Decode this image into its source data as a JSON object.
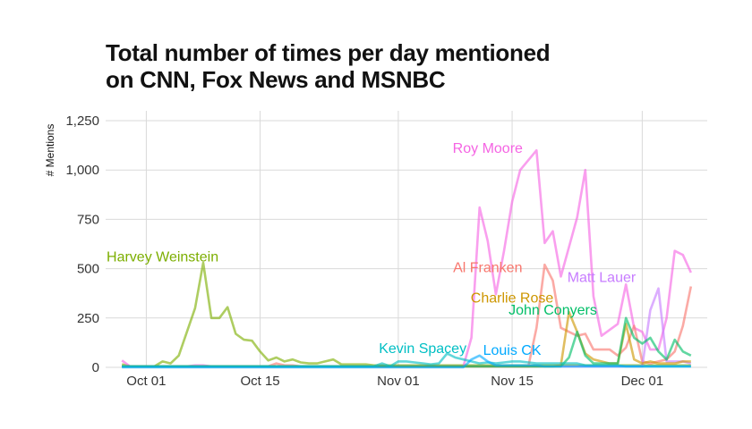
{
  "chart_data": {
    "type": "line",
    "title_lines": [
      "Total number of times per day mentioned",
      "on CNN, Fox News and MSNBC"
    ],
    "xlabel": "",
    "ylabel": "# Mentions",
    "x_start": "2017-09-28",
    "x_end": "2017-12-07",
    "xlim": [
      "2017-09-26",
      "2017-12-09"
    ],
    "ylim": [
      0,
      1300
    ],
    "y_ticks": [
      0,
      250,
      500,
      750,
      1000,
      1250
    ],
    "y_tick_labels": [
      "0",
      "250",
      "500",
      "750",
      "1,000",
      "1,250"
    ],
    "x_ticks": [
      "2017-10-01",
      "2017-10-15",
      "2017-11-01",
      "2017-11-15",
      "2017-12-01"
    ],
    "x_tick_labels": [
      "Oct 01",
      "Oct 15",
      "Nov 01",
      "Nov 15",
      "Dec 01"
    ],
    "grid": true,
    "legend": "direct labels",
    "series": [
      {
        "name": "Harvey Weinstein",
        "color": "#7cae00",
        "values": [
          15,
          5,
          5,
          5,
          5,
          30,
          20,
          60,
          180,
          300,
          530,
          250,
          250,
          305,
          170,
          140,
          135,
          80,
          35,
          50,
          30,
          40,
          25,
          20,
          20,
          30,
          40,
          15,
          15,
          15,
          15,
          10,
          10,
          10,
          10,
          10,
          10,
          10,
          10,
          10,
          10,
          10,
          10,
          10,
          10,
          10,
          10,
          10,
          10,
          10,
          10,
          10,
          10,
          10,
          10,
          10,
          10,
          10,
          10,
          10,
          10,
          10,
          10,
          10,
          10,
          10,
          10,
          10,
          10,
          10,
          10
        ]
      },
      {
        "name": "Roy Moore",
        "color": "#f564e3",
        "values": [
          35,
          5,
          5,
          5,
          5,
          5,
          5,
          5,
          5,
          10,
          10,
          5,
          5,
          5,
          5,
          5,
          5,
          5,
          5,
          5,
          5,
          5,
          5,
          5,
          5,
          5,
          5,
          5,
          5,
          5,
          5,
          5,
          5,
          5,
          5,
          5,
          5,
          5,
          5,
          5,
          5,
          5,
          5,
          150,
          810,
          640,
          370,
          590,
          840,
          1000,
          1050,
          1100,
          630,
          690,
          460,
          610,
          760,
          1000,
          360,
          160,
          190,
          220,
          420,
          200,
          180,
          90,
          90,
          250,
          590,
          570,
          480
        ]
      },
      {
        "name": "Al Franken",
        "color": "#f8766d",
        "values": [
          5,
          5,
          5,
          5,
          5,
          5,
          5,
          5,
          5,
          5,
          5,
          5,
          5,
          5,
          5,
          5,
          5,
          5,
          5,
          20,
          10,
          10,
          5,
          5,
          5,
          5,
          5,
          5,
          5,
          5,
          5,
          5,
          5,
          5,
          5,
          5,
          5,
          5,
          5,
          5,
          5,
          5,
          5,
          5,
          5,
          5,
          5,
          5,
          5,
          5,
          5,
          200,
          520,
          440,
          200,
          180,
          160,
          170,
          90,
          90,
          90,
          60,
          100,
          210,
          30,
          20,
          30,
          40,
          80,
          210,
          410
        ]
      },
      {
        "name": "Matt Lauer",
        "color": "#c77cff",
        "values": [
          5,
          5,
          5,
          5,
          5,
          5,
          5,
          5,
          5,
          5,
          5,
          5,
          5,
          5,
          5,
          5,
          5,
          5,
          5,
          5,
          5,
          5,
          5,
          5,
          5,
          5,
          5,
          5,
          5,
          5,
          5,
          5,
          5,
          5,
          5,
          5,
          5,
          5,
          5,
          5,
          5,
          5,
          5,
          5,
          5,
          5,
          5,
          5,
          5,
          5,
          5,
          5,
          5,
          5,
          5,
          5,
          5,
          5,
          5,
          5,
          5,
          5,
          5,
          5,
          5,
          290,
          400,
          30,
          30,
          30,
          20
        ]
      },
      {
        "name": "Charlie Rose",
        "color": "#cd9600",
        "values": [
          5,
          5,
          5,
          5,
          5,
          5,
          5,
          5,
          5,
          5,
          5,
          5,
          5,
          5,
          5,
          5,
          5,
          5,
          5,
          5,
          5,
          5,
          5,
          5,
          5,
          5,
          5,
          5,
          5,
          5,
          5,
          5,
          5,
          5,
          5,
          5,
          5,
          5,
          5,
          5,
          5,
          5,
          5,
          5,
          5,
          5,
          5,
          5,
          5,
          5,
          5,
          5,
          5,
          5,
          10,
          280,
          180,
          70,
          40,
          30,
          20,
          20,
          220,
          40,
          20,
          30,
          20,
          20,
          20,
          30,
          30
        ]
      },
      {
        "name": "John Conyers",
        "color": "#00be67",
        "values": [
          5,
          5,
          5,
          5,
          5,
          5,
          5,
          5,
          5,
          5,
          5,
          5,
          5,
          5,
          5,
          5,
          5,
          5,
          5,
          5,
          5,
          5,
          5,
          5,
          5,
          5,
          5,
          5,
          5,
          5,
          5,
          5,
          5,
          5,
          5,
          5,
          5,
          5,
          5,
          5,
          5,
          5,
          5,
          5,
          5,
          5,
          5,
          5,
          5,
          5,
          5,
          5,
          5,
          5,
          5,
          50,
          180,
          60,
          20,
          20,
          20,
          20,
          250,
          150,
          120,
          150,
          80,
          40,
          140,
          80,
          60
        ]
      },
      {
        "name": "Kevin Spacey",
        "color": "#00bfc4",
        "values": [
          5,
          5,
          5,
          5,
          5,
          5,
          5,
          5,
          5,
          5,
          5,
          5,
          5,
          5,
          5,
          5,
          5,
          5,
          5,
          5,
          5,
          5,
          5,
          5,
          5,
          5,
          5,
          5,
          5,
          5,
          5,
          5,
          20,
          5,
          30,
          30,
          25,
          20,
          15,
          20,
          70,
          50,
          40,
          30,
          20,
          25,
          20,
          25,
          30,
          30,
          25,
          20,
          20,
          20,
          20,
          20,
          20,
          10,
          10,
          10,
          10,
          10,
          5,
          5,
          5,
          5,
          5,
          5,
          5,
          5,
          5
        ]
      },
      {
        "name": "Louis CK",
        "color": "#00a9ff",
        "values": [
          0,
          0,
          0,
          0,
          0,
          0,
          0,
          0,
          0,
          0,
          0,
          0,
          0,
          0,
          0,
          0,
          0,
          0,
          0,
          0,
          0,
          0,
          0,
          0,
          0,
          0,
          0,
          0,
          0,
          0,
          0,
          0,
          0,
          0,
          0,
          0,
          0,
          0,
          0,
          0,
          0,
          0,
          0,
          40,
          60,
          30,
          10,
          10,
          10,
          10,
          10,
          10,
          5,
          5,
          5,
          5,
          5,
          5,
          5,
          5,
          5,
          5,
          5,
          5,
          5,
          5,
          5,
          5,
          5,
          5,
          5
        ]
      }
    ],
    "annotations": [
      {
        "text": "Harvey Weinstein",
        "series": "Harvey Weinstein",
        "x": "2017-10-03",
        "y": 565
      },
      {
        "text": "Roy Moore",
        "series": "Roy Moore",
        "x": "2017-11-12",
        "y": 1115
      },
      {
        "text": "Al Franken",
        "series": "Al Franken",
        "x": "2017-11-12",
        "y": 510
      },
      {
        "text": "Matt Lauer",
        "series": "Matt Lauer",
        "x": "2017-11-26",
        "y": 460
      },
      {
        "text": "Charlie Rose",
        "series": "Charlie Rose",
        "x": "2017-11-15",
        "y": 355
      },
      {
        "text": "John Conyers",
        "series": "John Conyers",
        "x": "2017-11-20",
        "y": 295
      },
      {
        "text": "Kevin Spacey",
        "series": "Kevin Spacey",
        "x": "2017-11-04",
        "y": 100
      },
      {
        "text": "Louis CK",
        "series": "Louis CK",
        "x": "2017-11-15",
        "y": 90
      }
    ]
  }
}
